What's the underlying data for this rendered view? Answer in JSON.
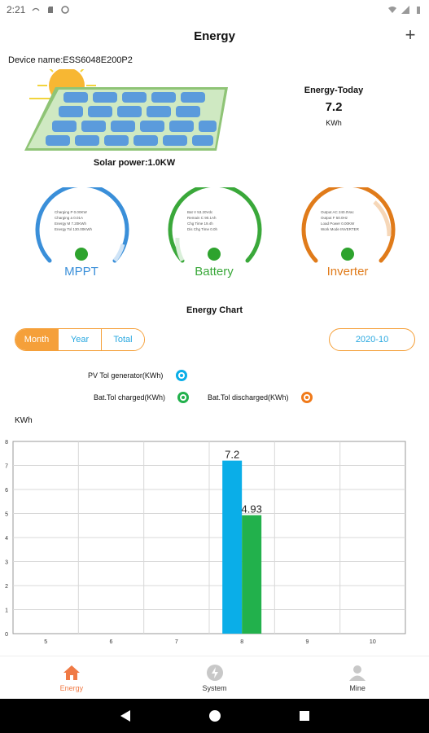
{
  "status_bar": {
    "time": "2:21"
  },
  "app_bar": {
    "title": "Energy",
    "add_icon": "+"
  },
  "device": {
    "label": "Device name:ESS6048E200P2"
  },
  "solar": {
    "power_label": "Solar power:1.0KW"
  },
  "today": {
    "title": "Energy-Today",
    "value": "7.2",
    "unit": "KWh"
  },
  "gauges": [
    {
      "name": "MPPT",
      "color": "#3a8fd9",
      "lines": [
        "Charging P 0.00KW",
        "Charging a 0.01A",
        "Energy M 7.20KWh",
        "Energy Tol 130.00KWh"
      ]
    },
    {
      "name": "Battery",
      "color": "#3aa83a",
      "lines": [
        "Bat V 53.20Vdc",
        "Remain C 90.1Ah",
        "Chg Time 19.4h",
        "Dis Chg Time 0.0h"
      ]
    },
    {
      "name": "Inverter",
      "color": "#e07b1a",
      "lines": [
        "Output AC 240.0Vac",
        "Output F 50.0Hz",
        "Load Power 0.00KW",
        "Work Mode INVERTER"
      ]
    }
  ],
  "energy_chart": {
    "title": "Energy Chart",
    "tabs": [
      "Month",
      "Year",
      "Total"
    ],
    "active_tab": "Month",
    "date": "2020-10",
    "legend": {
      "pv": "PV Tol generator(KWh)",
      "charged": "Bat.Tol charged(KWh)",
      "discharged": "Bat.Tol discharged(KWh)"
    },
    "y_unit": "KWh"
  },
  "chart_data": {
    "type": "bar",
    "categories": [
      "5",
      "6",
      "7",
      "8",
      "9",
      "10"
    ],
    "series": [
      {
        "name": "PV Tol generator(KWh)",
        "color": "#0aaee8",
        "values": [
          0,
          0,
          0,
          7.2,
          0,
          0
        ]
      },
      {
        "name": "Bat.Tol charged(KWh)",
        "color": "#22b14c",
        "values": [
          0,
          0,
          0,
          4.93,
          0,
          0
        ]
      },
      {
        "name": "Bat.Tol discharged(KWh)",
        "color": "#f07a1a",
        "values": [
          0,
          0,
          0,
          0,
          0,
          0
        ]
      }
    ],
    "data_labels": [
      "7.2",
      "4.93"
    ],
    "y_ticks": [
      "0",
      "1",
      "2",
      "3",
      "4",
      "5",
      "6",
      "7",
      "8"
    ],
    "ylim": [
      0,
      8
    ],
    "ylabel": "KWh",
    "grid": true
  },
  "bottom_nav": [
    {
      "label": "Energy",
      "icon": "home-icon",
      "active": true
    },
    {
      "label": "System",
      "icon": "system-icon",
      "active": false
    },
    {
      "label": "Mine",
      "icon": "person-icon",
      "active": false
    }
  ]
}
